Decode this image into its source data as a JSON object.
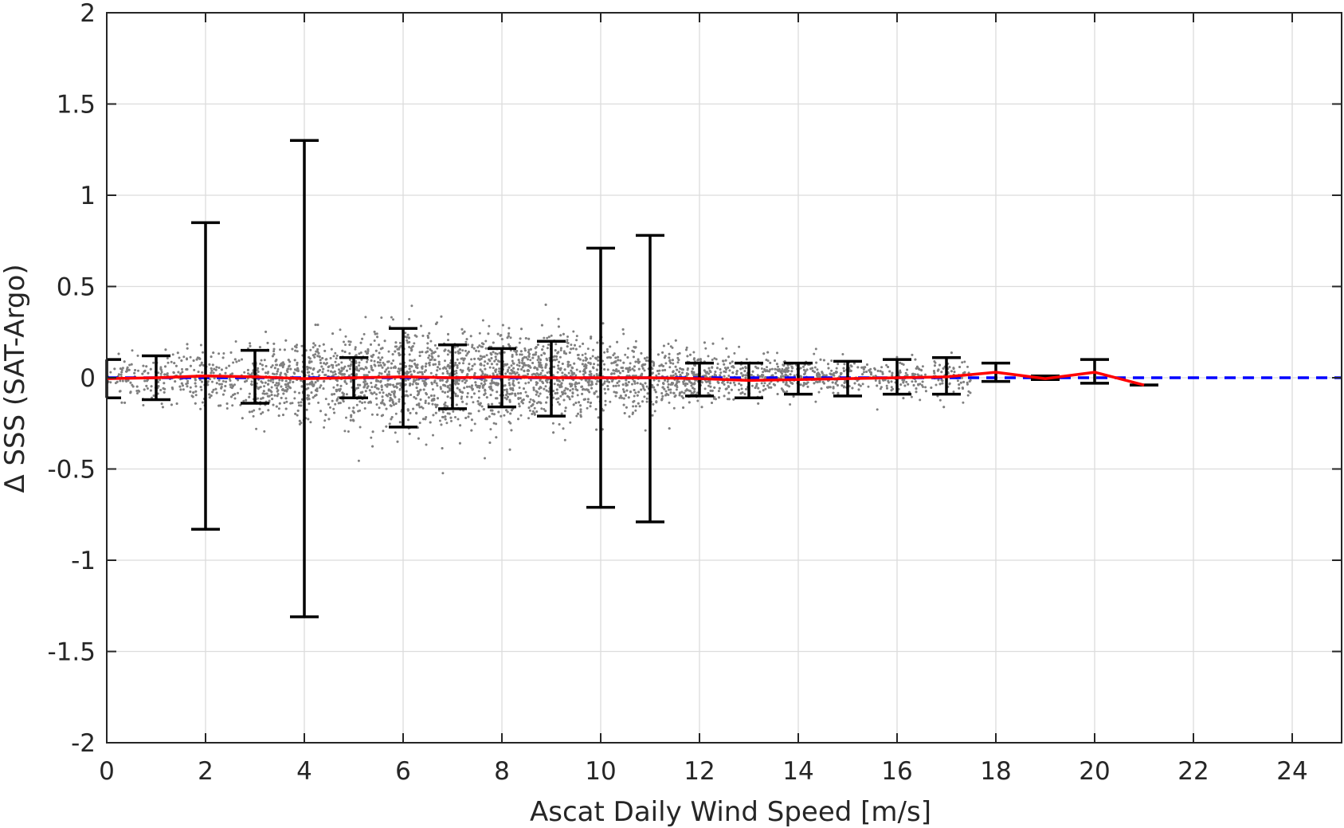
{
  "chart_data": {
    "type": "scatter",
    "title": "",
    "xlabel": "Ascat Daily Wind Speed [m/s]",
    "ylabel": "Δ SSS (SAT-Argo)",
    "xlim": [
      0,
      25
    ],
    "ylim": [
      -2,
      2
    ],
    "x_ticks": [
      0,
      2,
      4,
      6,
      8,
      10,
      12,
      14,
      16,
      18,
      20,
      22,
      24
    ],
    "y_ticks": [
      -2,
      -1.5,
      -1,
      -0.5,
      0,
      0.5,
      1,
      1.5,
      2
    ],
    "y_tick_labels": [
      "-2",
      "-1.5",
      "-1",
      "-0.5",
      "0",
      "0.5",
      "1",
      "1.5",
      "2"
    ],
    "grid": true,
    "colors": {
      "scatter": "#808080",
      "mean_line": "#ff0000",
      "zero_line": "#0000ff",
      "error_bars": "#000000",
      "grid": "#dcdcdc",
      "axes": "#262626"
    },
    "scatter_cloud": {
      "description_level": "dense gray points",
      "x_range": [
        0,
        17.5
      ],
      "approx_spread_by_wind": [
        {
          "x": 0,
          "sd": 0.06
        },
        {
          "x": 2,
          "sd": 0.08
        },
        {
          "x": 4,
          "sd": 0.11
        },
        {
          "x": 6,
          "sd": 0.13
        },
        {
          "x": 8,
          "sd": 0.13
        },
        {
          "x": 10,
          "sd": 0.11
        },
        {
          "x": 12,
          "sd": 0.07
        },
        {
          "x": 14,
          "sd": 0.05
        },
        {
          "x": 16,
          "sd": 0.05
        },
        {
          "x": 17.5,
          "sd": 0.06
        }
      ]
    },
    "series": [
      {
        "kind": "mean_line",
        "x": [
          0,
          1,
          2,
          3,
          4,
          5,
          6,
          7,
          8,
          9,
          10,
          11,
          12,
          13,
          14,
          15,
          16,
          17,
          18,
          19,
          20,
          21
        ],
        "y": [
          -0.005,
          0.0,
          0.01,
          0.005,
          -0.005,
          0.0,
          0.005,
          0.0,
          0.005,
          0.0,
          0.0,
          0.0,
          -0.005,
          -0.015,
          -0.01,
          -0.005,
          0.0,
          0.005,
          0.03,
          -0.005,
          0.03,
          -0.04
        ]
      },
      {
        "kind": "error_bars",
        "x": [
          0,
          1,
          2,
          3,
          4,
          5,
          6,
          7,
          8,
          9,
          10,
          11,
          12,
          13,
          14,
          15,
          16,
          17,
          18,
          19,
          20,
          21
        ],
        "lower": [
          -0.11,
          -0.12,
          -0.83,
          -0.14,
          -1.31,
          -0.11,
          -0.27,
          -0.17,
          -0.16,
          -0.21,
          -0.71,
          -0.79,
          -0.1,
          -0.11,
          -0.09,
          -0.1,
          -0.09,
          -0.09,
          -0.02,
          -0.01,
          -0.03,
          -0.04
        ],
        "upper": [
          0.1,
          0.12,
          0.85,
          0.15,
          1.3,
          0.11,
          0.27,
          0.18,
          0.16,
          0.2,
          0.71,
          0.78,
          0.08,
          0.08,
          0.08,
          0.09,
          0.1,
          0.11,
          0.08,
          0.01,
          0.1,
          -0.04
        ]
      },
      {
        "kind": "reference_line",
        "y": 0,
        "style": "dashed"
      }
    ]
  }
}
